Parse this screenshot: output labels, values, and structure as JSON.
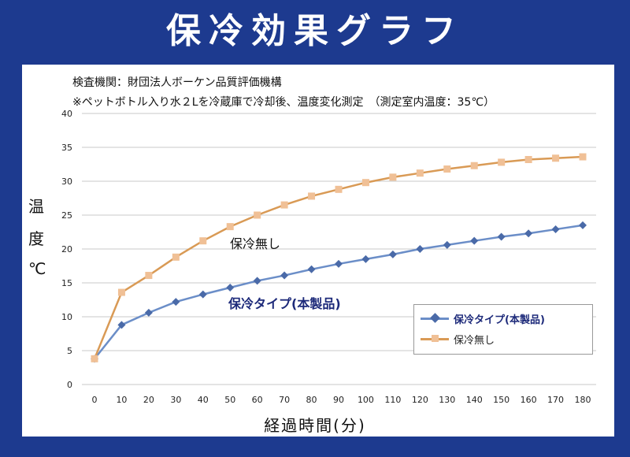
{
  "header": {
    "title": "保冷効果グラフ"
  },
  "notes": {
    "line1": "検査機関：財団法人ボーケン品質評価機構",
    "line2": "※ペットボトル入り水２Lを冷蔵庫で冷却後、温度変化測定　（測定室内温度：35℃）"
  },
  "axis_labels": {
    "y": [
      "温",
      "度",
      "℃"
    ],
    "x": "経過時間(分)"
  },
  "annotations": {
    "no_insulation": "保冷無し",
    "product": "保冷タイプ(本製品)"
  },
  "legend": {
    "series1": "保冷タイプ(本製品)",
    "series2": "保冷無し"
  },
  "colors": {
    "series1_line": "#6b8ec8",
    "series1_marker": "#4a6aa8",
    "series2_line": "#d99a55",
    "series2_marker": "#f0c096",
    "grid": "#c8c8c8"
  },
  "chart_data": {
    "type": "line",
    "title": "保冷効果グラフ",
    "xlabel": "経過時間(分)",
    "ylabel": "温度℃",
    "x": [
      0,
      10,
      20,
      30,
      40,
      50,
      60,
      70,
      80,
      90,
      100,
      110,
      120,
      130,
      140,
      150,
      160,
      170,
      180
    ],
    "ylim": [
      0,
      40
    ],
    "yticks": [
      0,
      5,
      10,
      15,
      20,
      25,
      30,
      35,
      40
    ],
    "grid": true,
    "legend_position": "bottom-right",
    "series": [
      {
        "name": "保冷タイプ(本製品)",
        "values": [
          3.8,
          8.8,
          10.6,
          12.2,
          13.3,
          14.3,
          15.3,
          16.1,
          17.0,
          17.8,
          18.5,
          19.2,
          20.0,
          20.6,
          21.2,
          21.8,
          22.3,
          22.9,
          23.5
        ]
      },
      {
        "name": "保冷無し",
        "values": [
          3.8,
          13.6,
          16.1,
          18.8,
          21.2,
          23.3,
          25.0,
          26.5,
          27.8,
          28.8,
          29.8,
          30.6,
          31.2,
          31.8,
          32.3,
          32.8,
          33.2,
          33.4,
          33.6
        ]
      }
    ]
  }
}
